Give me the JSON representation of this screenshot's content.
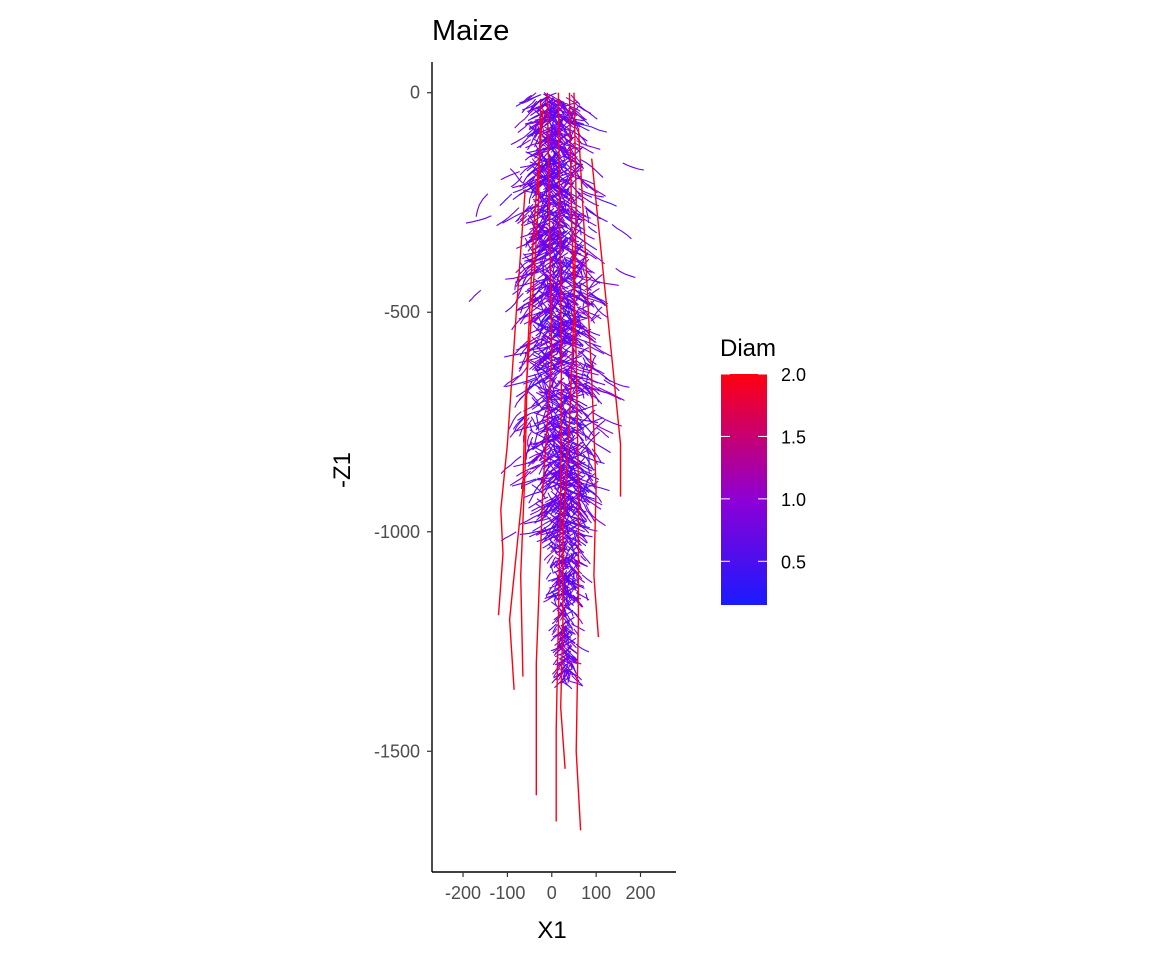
{
  "chart_data": {
    "type": "line",
    "title": "Maize",
    "xlabel": "X1",
    "ylabel": "-Z1",
    "xlim": [
      -270,
      280
    ],
    "ylim": [
      -1775,
      70
    ],
    "x_ticks": [
      -200,
      -100,
      0,
      100,
      200
    ],
    "x_tick_labels": [
      "-200",
      "-100",
      "0",
      "100",
      "200"
    ],
    "y_ticks": [
      0,
      -500,
      -1000,
      -1500
    ],
    "y_tick_labels": [
      "0",
      "-500",
      "-1000",
      "-1500"
    ],
    "grid": false,
    "legend": {
      "title": "Diam",
      "position": "right",
      "scale_min": 0.15,
      "scale_max": 2.0,
      "breaks": [
        2.0,
        1.5,
        1.0,
        0.5
      ],
      "break_labels": [
        "2.0",
        "1.5",
        "1.0",
        "0.5"
      ],
      "low_color": "#1a1aff",
      "high_color": "#ff0010"
    },
    "colors": {
      "lateral": "#6a00f0",
      "axial": "#ff0010"
    },
    "primary_roots": [
      {
        "x": [
          15,
          18,
          22,
          20,
          15,
          10,
          10
        ],
        "y": [
          0,
          -300,
          -600,
          -900,
          -1200,
          -1450,
          -1660
        ]
      },
      {
        "x": [
          40,
          45,
          55,
          60,
          60,
          55,
          65
        ],
        "y": [
          0,
          -300,
          -600,
          -900,
          -1200,
          -1500,
          -1680
        ]
      },
      {
        "x": [
          -10,
          -5,
          0,
          -20,
          -35,
          -35
        ],
        "y": [
          0,
          -300,
          -600,
          -900,
          -1300,
          -1600
        ]
      },
      {
        "x": [
          -25,
          -30,
          -45,
          -60,
          -65,
          -80,
          -95,
          -85
        ],
        "y": [
          -20,
          -250,
          -500,
          -700,
          -900,
          -1050,
          -1200,
          -1360
        ]
      },
      {
        "x": [
          -60,
          -80,
          -100,
          -115,
          -110,
          -120
        ],
        "y": [
          -220,
          -500,
          -800,
          -950,
          -1050,
          -1190
        ]
      },
      {
        "x": [
          50,
          55,
          50,
          40,
          25,
          25,
          20,
          30
        ],
        "y": [
          0,
          -250,
          -500,
          -750,
          -1000,
          -1200,
          -1400,
          -1540
        ]
      },
      {
        "x": [
          90,
          110,
          135,
          155,
          155
        ],
        "y": [
          -150,
          -350,
          -600,
          -800,
          -920
        ]
      },
      {
        "x": [
          -20,
          -40,
          -55,
          -60,
          -70,
          -65
        ],
        "y": [
          -40,
          -300,
          -600,
          -850,
          -1100,
          -1330
        ]
      },
      {
        "x": [
          60,
          75,
          90,
          100,
          95,
          105
        ],
        "y": [
          -80,
          -350,
          -650,
          -900,
          -1100,
          -1240
        ]
      }
    ]
  }
}
